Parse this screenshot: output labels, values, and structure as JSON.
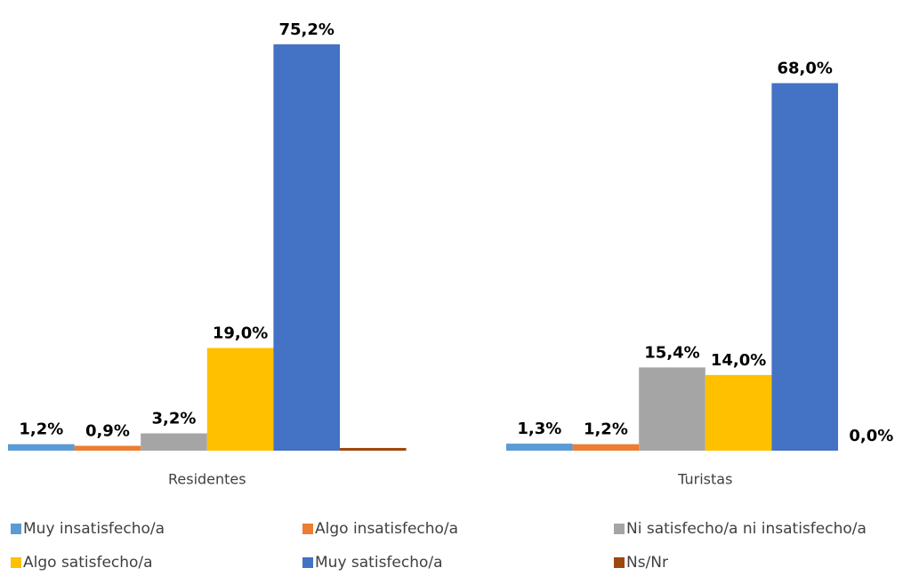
{
  "chart_data": {
    "type": "bar",
    "categories": [
      "Residentes",
      "Turistas"
    ],
    "series": [
      {
        "name": "Muy insatisfecho/a",
        "color": "#5b9bd5",
        "values": [
          1.2,
          1.3
        ],
        "value_labels": [
          "1,2%",
          "1,3%"
        ]
      },
      {
        "name": "Algo insatisfecho/a",
        "color": "#ed7d31",
        "values": [
          0.9,
          1.2
        ],
        "value_labels": [
          "0,9%",
          "1,2%"
        ]
      },
      {
        "name": "Ni satisfecho/a ni insatisfecho/a",
        "color": "#a5a5a5",
        "values": [
          3.2,
          15.4
        ],
        "value_labels": [
          "3,2%",
          "15,4%"
        ]
      },
      {
        "name": "Algo satisfecho/a",
        "color": "#ffc000",
        "values": [
          19.0,
          14.0
        ],
        "value_labels": [
          "19,0%",
          "14,0%"
        ]
      },
      {
        "name": "Muy satisfecho/a",
        "color": "#4472c4",
        "values": [
          75.2,
          68.0
        ],
        "value_labels": [
          "75,2%",
          "68,0%"
        ]
      },
      {
        "name": "Ns/Nr",
        "color": "#9e480e",
        "values": [
          0.5,
          0.0
        ],
        "value_labels": [
          null,
          "0,0%"
        ]
      }
    ]
  }
}
